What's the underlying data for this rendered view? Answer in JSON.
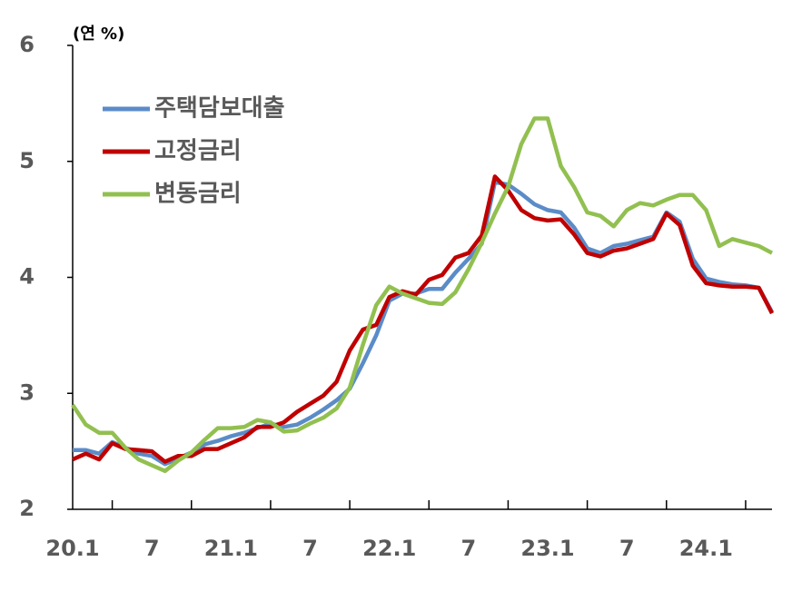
{
  "chart_data": {
    "type": "line",
    "unit_label": "(연 %)",
    "categories": [
      "20.1",
      null,
      null,
      null,
      null,
      null,
      "7",
      null,
      null,
      null,
      null,
      null,
      "21.1",
      null,
      null,
      null,
      null,
      null,
      "7",
      null,
      null,
      null,
      null,
      null,
      "22.1",
      null,
      null,
      null,
      null,
      null,
      "7",
      null,
      null,
      null,
      null,
      null,
      "23.1",
      null,
      null,
      null,
      null,
      null,
      "7",
      null,
      null,
      null,
      null,
      null,
      "24.1",
      null,
      null,
      null,
      null,
      null
    ],
    "series": [
      {
        "name": "주택담보대출",
        "color": "#5b8cc8",
        "values": [
          2.51,
          2.51,
          2.48,
          2.58,
          2.53,
          2.48,
          2.46,
          2.39,
          2.44,
          2.49,
          2.56,
          2.59,
          2.63,
          2.66,
          2.7,
          2.74,
          2.71,
          2.73,
          2.79,
          2.86,
          2.94,
          3.04,
          3.26,
          3.5,
          3.8,
          3.86,
          3.86,
          3.9,
          3.9,
          4.04,
          4.16,
          4.29,
          4.82,
          4.8,
          4.72,
          4.63,
          4.58,
          4.56,
          4.43,
          4.25,
          4.21,
          4.27,
          4.29,
          4.32,
          4.35,
          4.56,
          4.48,
          4.16,
          3.99,
          3.96,
          3.94,
          3.93,
          3.91,
          3.7
        ]
      },
      {
        "name": "고정금리",
        "color": "#c00000",
        "values": [
          2.43,
          2.48,
          2.43,
          2.57,
          2.52,
          2.51,
          2.5,
          2.41,
          2.46,
          2.46,
          2.52,
          2.52,
          2.57,
          2.62,
          2.71,
          2.71,
          2.75,
          2.84,
          2.91,
          2.98,
          3.1,
          3.37,
          3.55,
          3.59,
          3.83,
          3.88,
          3.85,
          3.98,
          4.02,
          4.17,
          4.21,
          4.36,
          4.87,
          4.75,
          4.58,
          4.51,
          4.49,
          4.5,
          4.37,
          4.21,
          4.18,
          4.23,
          4.25,
          4.29,
          4.33,
          4.55,
          4.45,
          4.1,
          3.95,
          3.93,
          3.92,
          3.92,
          3.91,
          3.69
        ]
      },
      {
        "name": "변동금리",
        "color": "#92c050",
        "values": [
          2.9,
          2.73,
          2.66,
          2.66,
          2.53,
          2.43,
          2.38,
          2.33,
          2.42,
          2.49,
          2.6,
          2.7,
          2.7,
          2.71,
          2.77,
          2.75,
          2.67,
          2.68,
          2.74,
          2.79,
          2.87,
          3.05,
          3.42,
          3.76,
          3.92,
          3.86,
          3.82,
          3.78,
          3.77,
          3.87,
          4.07,
          4.3,
          4.55,
          4.78,
          5.15,
          5.37,
          5.37,
          4.96,
          4.78,
          4.56,
          4.53,
          4.44,
          4.58,
          4.64,
          4.62,
          4.67,
          4.71,
          4.71,
          4.58,
          4.27,
          4.33,
          4.3,
          4.27,
          4.21
        ]
      }
    ],
    "ylim": [
      2,
      6
    ],
    "yticks": [
      2,
      3,
      4,
      5,
      6
    ],
    "legend": "upper-left"
  }
}
